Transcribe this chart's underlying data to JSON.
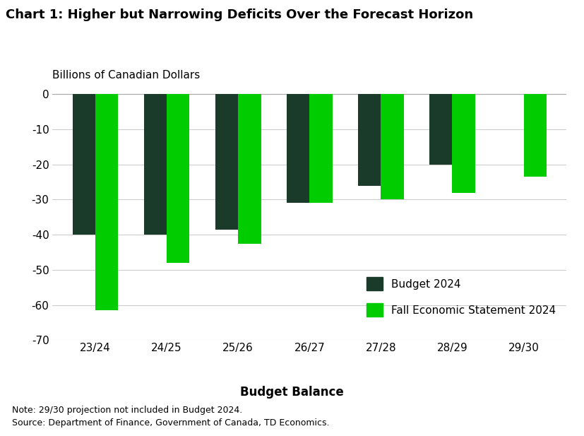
{
  "title": "Chart 1: Higher but Narrowing Deficits Over the Forecast Horizon",
  "ylabel_top": "Billions of Canadian Dollars",
  "xlabel": "Budget Balance",
  "categories": [
    "23/24",
    "24/25",
    "25/26",
    "26/27",
    "27/28",
    "28/29",
    "29/30"
  ],
  "budget_2024": [
    -40.0,
    -40.0,
    -38.5,
    -31.0,
    -26.0,
    -20.0,
    null
  ],
  "fes_2024": [
    -61.5,
    -48.0,
    -42.5,
    -31.0,
    -30.0,
    -28.0,
    -23.5
  ],
  "budget_color": "#1a3a2a",
  "fes_color": "#00cc00",
  "ylim": [
    -70,
    2
  ],
  "yticks": [
    0,
    -10,
    -20,
    -30,
    -40,
    -50,
    -60,
    -70
  ],
  "note_line1": "Note: 29/30 projection not included in Budget 2024.",
  "note_line2": "Source: Department of Finance, Government of Canada, TD Economics.",
  "legend_budget": "Budget 2024",
  "legend_fes": "Fall Economic Statement 2024",
  "background_color": "#ffffff",
  "bar_width": 0.32
}
